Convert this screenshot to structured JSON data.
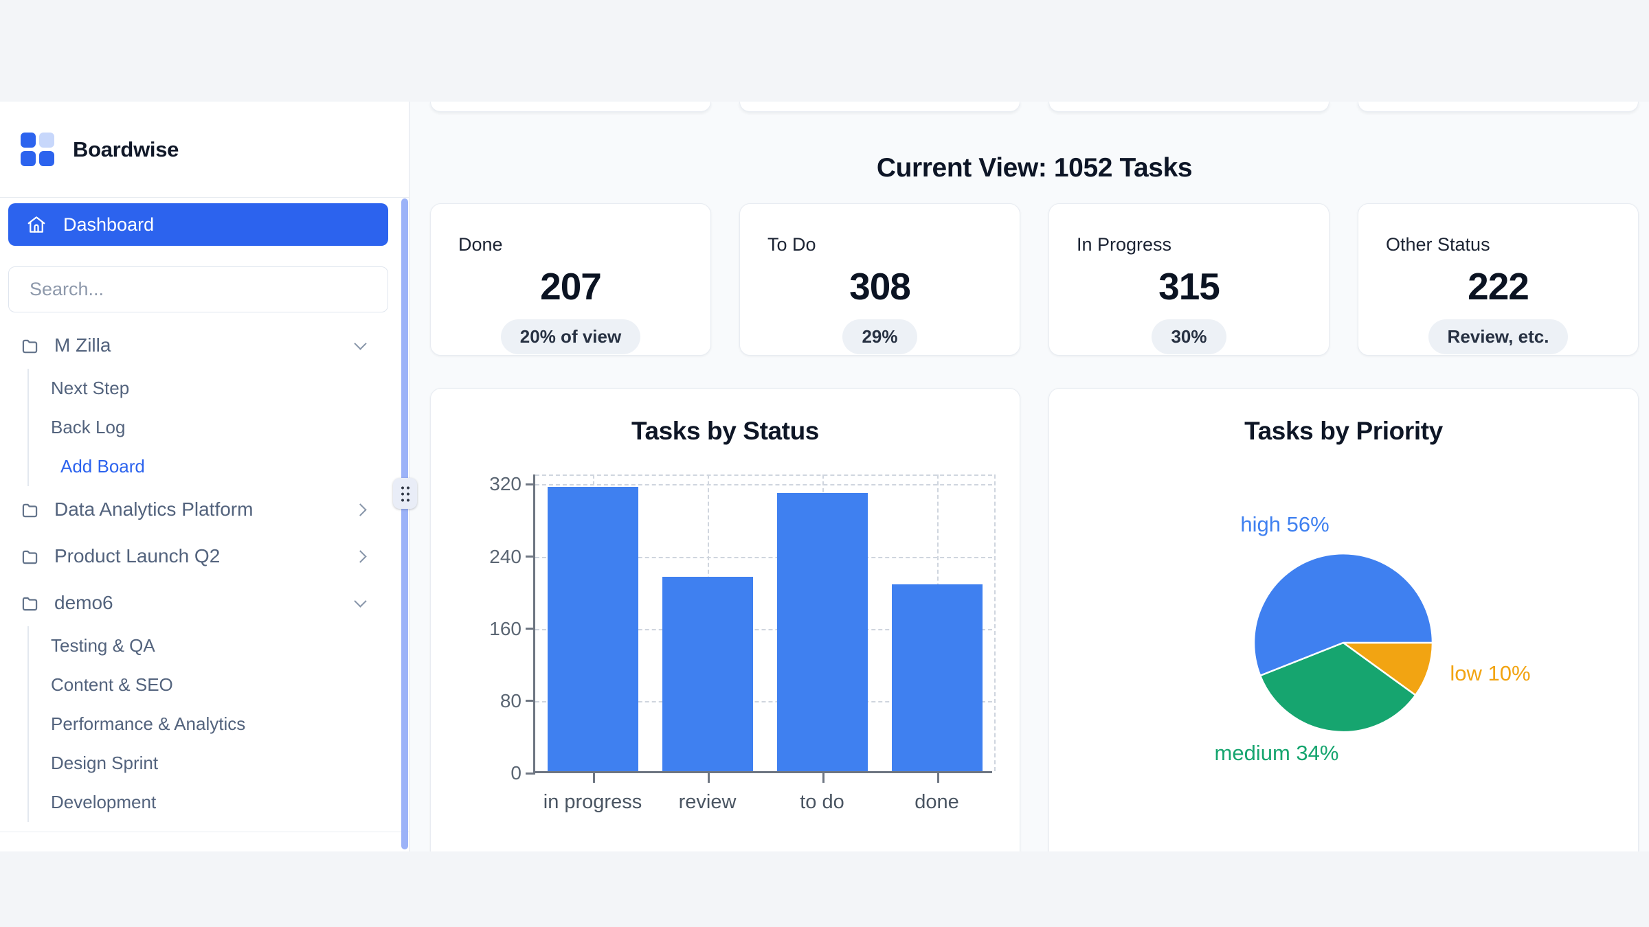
{
  "sidebar": {
    "logo_text": "Boardwise",
    "nav_dashboard": "Dashboard",
    "search_placeholder": "Search...",
    "tree": [
      {
        "label": "M Zilla",
        "type": "folder",
        "expanded": true,
        "children": [
          {
            "label": "Next Step"
          },
          {
            "label": "Back Log"
          },
          {
            "label": "Add Board",
            "accent": true
          }
        ]
      },
      {
        "label": "Data Analytics Platform",
        "type": "folder",
        "expanded": false
      },
      {
        "label": "Product Launch Q2",
        "type": "folder",
        "expanded": false
      },
      {
        "label": "demo6",
        "type": "folder",
        "expanded": true,
        "children": [
          {
            "label": "Testing & QA"
          },
          {
            "label": "Content & SEO"
          },
          {
            "label": "Performance & Analytics"
          },
          {
            "label": "Design Sprint"
          },
          {
            "label": "Development"
          }
        ]
      }
    ]
  },
  "main": {
    "heading": "Current View: 1052 Tasks",
    "stats": [
      {
        "label": "Done",
        "value": "207",
        "badge": "20% of view"
      },
      {
        "label": "To Do",
        "value": "308",
        "badge": "29%"
      },
      {
        "label": "In Progress",
        "value": "315",
        "badge": "30%"
      },
      {
        "label": "Other Status",
        "value": "222",
        "badge": "Review, etc."
      }
    ]
  },
  "chart_data": [
    {
      "type": "bar",
      "title": "Tasks by Status",
      "categories": [
        "in progress",
        "review",
        "to do",
        "done"
      ],
      "values": [
        315,
        215,
        308,
        207
      ],
      "yticks": [
        0,
        80,
        160,
        240,
        320
      ],
      "ylim": [
        0,
        331
      ],
      "xlabel": "",
      "ylabel": "",
      "grid": "dashed, horizontal at y-ticks and vertical at category centers",
      "bar_color": "#3f80f0"
    },
    {
      "type": "pie",
      "title": "Tasks by Priority",
      "start_angle_clockwise_from_top_deg": 90,
      "slices": [
        {
          "name": "low",
          "pct": 10,
          "color": "#f2a412",
          "label": "low 10%"
        },
        {
          "name": "medium",
          "pct": 34,
          "color": "#16a56f",
          "label": "medium 34%"
        },
        {
          "name": "high",
          "pct": 56,
          "color": "#3f80f0",
          "label": "high 56%"
        }
      ],
      "legend_position": "labels around pie"
    }
  ],
  "colors": {
    "primary_blue": "#2c63ee",
    "bar_blue": "#3f80f0",
    "pie_green": "#16a56f",
    "pie_orange": "#f2a412",
    "page_bg": "#f3f5f8",
    "main_bg": "#f8fafc"
  }
}
